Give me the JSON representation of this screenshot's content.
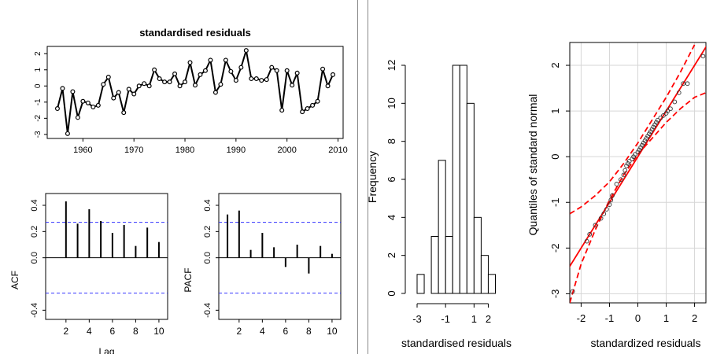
{
  "chart_data": [
    {
      "type": "line",
      "title": "standardised residuals",
      "xlim": [
        1955,
        2009
      ],
      "ylim": [
        -3,
        2.2
      ],
      "x_ticks": [
        "1960",
        "1970",
        "1980",
        "1990",
        "2000",
        "2010"
      ],
      "y_ticks": [
        "-3",
        "-2",
        "-1",
        "0",
        "1",
        "2"
      ],
      "x": [
        1955,
        1956,
        1957,
        1958,
        1959,
        1960,
        1961,
        1962,
        1963,
        1964,
        1965,
        1966,
        1967,
        1968,
        1969,
        1970,
        1971,
        1972,
        1973,
        1974,
        1975,
        1976,
        1977,
        1978,
        1979,
        1980,
        1981,
        1982,
        1983,
        1984,
        1985,
        1986,
        1987,
        1988,
        1989,
        1990,
        1991,
        1992,
        1993,
        1994,
        1995,
        1996,
        1997,
        1998,
        1999,
        2000,
        2001,
        2002,
        2003,
        2004,
        2005,
        2006,
        2007,
        2008,
        2009
      ],
      "values": [
        -1.4,
        -0.15,
        -2.95,
        -0.35,
        -1.95,
        -0.95,
        -1.05,
        -1.3,
        -1.2,
        0.1,
        0.55,
        -0.75,
        -0.4,
        -1.65,
        -0.2,
        -0.5,
        0.0,
        0.15,
        0.0,
        1.0,
        0.45,
        0.25,
        0.25,
        0.75,
        0.0,
        0.25,
        1.45,
        0.05,
        0.7,
        0.95,
        1.6,
        -0.4,
        0.1,
        1.6,
        0.9,
        0.35,
        1.15,
        2.2,
        0.45,
        0.45,
        0.35,
        0.4,
        1.15,
        0.95,
        -1.5,
        0.95,
        0.05,
        0.8,
        -1.6,
        -1.4,
        -1.2,
        -0.95,
        1.05,
        0.0,
        0.7
      ]
    },
    {
      "type": "bar",
      "ylabel": "ACF",
      "xlabel": "Lag",
      "ylim": [
        -0.4,
        0.4
      ],
      "x_ticks": [
        "2",
        "4",
        "6",
        "8",
        "10"
      ],
      "y_ticks": [
        "-0.4",
        "0.0",
        "0.2",
        "0.4"
      ],
      "confidence_band": 0.27,
      "categories": [
        1,
        2,
        3,
        4,
        5,
        6,
        7,
        8,
        9,
        10
      ],
      "values": [
        0.0,
        0.43,
        0.26,
        0.37,
        0.28,
        0.19,
        0.25,
        0.09,
        0.23,
        0.12
      ]
    },
    {
      "type": "bar",
      "ylabel": "PACF",
      "xlabel": "",
      "ylim": [
        -0.4,
        0.4
      ],
      "x_ticks": [
        "2",
        "4",
        "6",
        "8",
        "10"
      ],
      "y_ticks": [
        "-0.4",
        "0.0",
        "0.2",
        "0.4"
      ],
      "confidence_band": 0.27,
      "categories": [
        1,
        2,
        3,
        4,
        5,
        6,
        7,
        8,
        9,
        10
      ],
      "values": [
        0.33,
        0.36,
        0.06,
        0.19,
        0.08,
        -0.07,
        0.1,
        -0.12,
        0.09,
        0.03
      ]
    },
    {
      "type": "bar",
      "xlabel": "standardised residuals",
      "ylabel": "Frequency",
      "ylim": [
        0,
        12
      ],
      "x_ticks": [
        "-3",
        "-1",
        "1",
        "2"
      ],
      "x_tick_values": [
        -3,
        -1,
        1,
        2
      ],
      "y_ticks": [
        "0",
        "2",
        "4",
        "6",
        "8",
        "10",
        "12"
      ],
      "bin_edges": [
        -3.0,
        -2.5,
        -2.0,
        -1.5,
        -1.0,
        -0.5,
        0.0,
        0.5,
        1.0,
        1.5,
        2.0,
        2.5
      ],
      "values": [
        1,
        0,
        3,
        7,
        3,
        12,
        12,
        10,
        4,
        2,
        1
      ]
    },
    {
      "type": "scatter",
      "xlabel": "standardized residuals",
      "ylabel": "Quantiles of standard normal",
      "xlim": [
        -2.4,
        2.4
      ],
      "ylim": [
        -3.2,
        2.5
      ],
      "x_ticks": [
        "-2",
        "-1",
        "0",
        "1",
        "2"
      ],
      "y_ticks": [
        "-3",
        "-2",
        "-1",
        "0",
        "1",
        "2"
      ],
      "reference_line": {
        "slope": 1.0,
        "intercept": 0.0
      },
      "envelope_lower": [
        [
          -2.4,
          -3.2
        ],
        [
          -2.0,
          -2.35
        ],
        [
          -1.5,
          -1.6
        ],
        [
          -1.0,
          -0.95
        ],
        [
          -0.5,
          -0.4
        ],
        [
          0.0,
          0.05
        ],
        [
          0.5,
          0.4
        ],
        [
          1.0,
          0.75
        ],
        [
          1.5,
          1.05
        ],
        [
          2.0,
          1.3
        ],
        [
          2.4,
          1.4
        ]
      ],
      "envelope_upper": [
        [
          -2.4,
          -1.25
        ],
        [
          -2.0,
          -1.1
        ],
        [
          -1.5,
          -0.85
        ],
        [
          -1.0,
          -0.55
        ],
        [
          -0.5,
          -0.15
        ],
        [
          0.0,
          0.3
        ],
        [
          0.5,
          0.8
        ],
        [
          1.0,
          1.3
        ],
        [
          1.5,
          1.85
        ],
        [
          2.0,
          2.45
        ]
      ],
      "points": [
        [
          -2.3,
          -2.95
        ],
        [
          -1.8,
          -1.85
        ],
        [
          -1.7,
          -1.7
        ],
        [
          -1.5,
          -1.5
        ],
        [
          -1.3,
          -1.35
        ],
        [
          -1.2,
          -1.25
        ],
        [
          -1.1,
          -1.15
        ],
        [
          -1.0,
          -1.05
        ],
        [
          -0.95,
          -0.95
        ],
        [
          -0.9,
          -0.85
        ],
        [
          -0.75,
          -0.6
        ],
        [
          -0.6,
          -0.5
        ],
        [
          -0.5,
          -0.4
        ],
        [
          -0.45,
          -0.3
        ],
        [
          -0.4,
          -0.2
        ],
        [
          -0.35,
          -0.15
        ],
        [
          -0.3,
          -0.1
        ],
        [
          -0.2,
          -0.05
        ],
        [
          -0.15,
          0.0
        ],
        [
          -0.1,
          0.05
        ],
        [
          0.0,
          0.1
        ],
        [
          0.05,
          0.15
        ],
        [
          0.1,
          0.2
        ],
        [
          0.15,
          0.25
        ],
        [
          0.2,
          0.3
        ],
        [
          0.25,
          0.35
        ],
        [
          0.3,
          0.4
        ],
        [
          0.35,
          0.45
        ],
        [
          0.4,
          0.5
        ],
        [
          0.45,
          0.55
        ],
        [
          0.5,
          0.6
        ],
        [
          0.55,
          0.65
        ],
        [
          0.6,
          0.7
        ],
        [
          0.65,
          0.75
        ],
        [
          0.7,
          0.8
        ],
        [
          0.8,
          0.85
        ],
        [
          0.9,
          0.9
        ],
        [
          1.0,
          0.95
        ],
        [
          1.05,
          1.0
        ],
        [
          1.15,
          1.05
        ],
        [
          1.3,
          1.2
        ],
        [
          1.45,
          1.4
        ],
        [
          1.6,
          1.6
        ],
        [
          1.75,
          1.6
        ],
        [
          2.3,
          2.2
        ]
      ]
    }
  ],
  "colors": {
    "series": "#000000",
    "band": "#3333ff",
    "reference": "#ff0000",
    "frame": "#000000",
    "divider": "#8a8a8a"
  }
}
